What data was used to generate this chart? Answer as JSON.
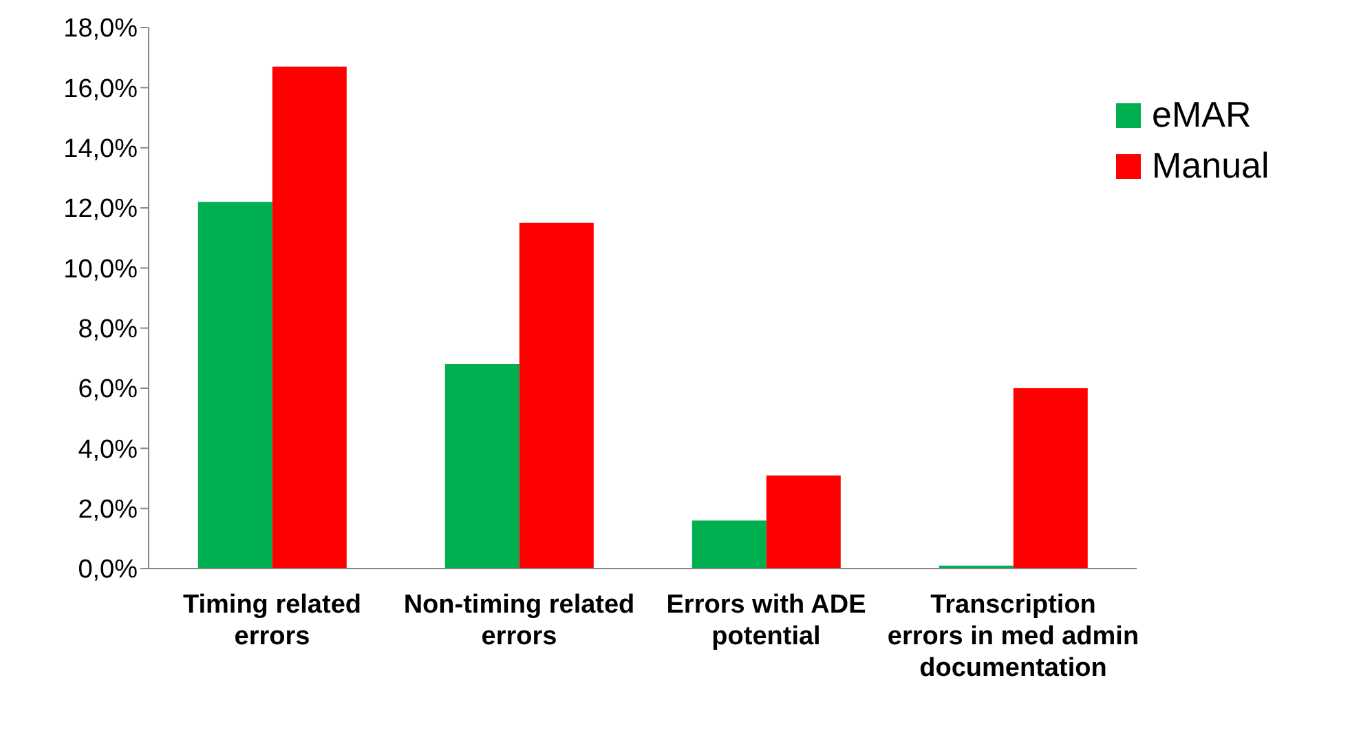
{
  "chart_data": {
    "type": "bar",
    "categories": [
      "Timing related errors",
      "Non-timing related errors",
      "Errors with ADE potential",
      "Transcription errors in med admin documentation"
    ],
    "series": [
      {
        "name": "eMAR",
        "color": "#00b050",
        "values": [
          12.2,
          6.8,
          1.6,
          0.1
        ]
      },
      {
        "name": "Manual",
        "color": "#ff0000",
        "values": [
          16.7,
          11.5,
          3.1,
          6.0
        ]
      }
    ],
    "ylim": [
      0,
      18
    ],
    "yticks": [
      {
        "value": 0,
        "label": "0,0%"
      },
      {
        "value": 2,
        "label": "2,0%"
      },
      {
        "value": 4,
        "label": "4,0%"
      },
      {
        "value": 6,
        "label": "6,0%"
      },
      {
        "value": 8,
        "label": "8,0%"
      },
      {
        "value": 10,
        "label": "10,0%"
      },
      {
        "value": 12,
        "label": "12,0%"
      },
      {
        "value": 14,
        "label": "14,0%"
      },
      {
        "value": 16,
        "label": "16,0%"
      },
      {
        "value": 18,
        "label": "18,0%"
      }
    ],
    "grid": false,
    "legend": "top right"
  }
}
